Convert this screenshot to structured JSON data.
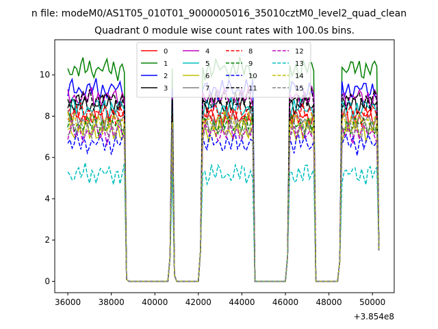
{
  "chart_data": {
    "type": "line",
    "suptitle": "n file: modeM0/AS1T05_010T01_9000005016_35010cztM0_level2_quad_clean",
    "title": "Quadrant 0 module wise count rates with 100.0s bins.",
    "xlabel": "",
    "ylabel": "",
    "x_offset_label": "+3.854e8",
    "xlim": [
      35400,
      51000
    ],
    "ylim": [
      -0.55,
      11.7
    ],
    "xticks": [
      36000,
      38000,
      40000,
      42000,
      44000,
      46000,
      48000,
      50000
    ],
    "xtick_labels": [
      "36000",
      "38000",
      "40000",
      "42000",
      "44000",
      "46000",
      "48000",
      "50000"
    ],
    "yticks": [
      0,
      2,
      4,
      6,
      8,
      10
    ],
    "ytick_labels": [
      "0",
      "2",
      "4",
      "6",
      "8",
      "10"
    ],
    "grid": false,
    "legend": {
      "location": "top-center",
      "columns": 4
    },
    "segments": [
      {
        "start": 36000,
        "end": 38600,
        "kind": "on"
      },
      {
        "start": 38700,
        "end": 38700,
        "kind": "drop",
        "value": 0.1
      },
      {
        "start": 38800,
        "end": 40600,
        "kind": "zero"
      },
      {
        "start": 40700,
        "end": 40700,
        "kind": "rise",
        "value": 1.2
      },
      {
        "start": 40800,
        "end": 40800,
        "kind": "spike",
        "value": 9.0
      },
      {
        "start": 40900,
        "end": 40900,
        "kind": "drop",
        "value": 0.3
      },
      {
        "start": 41000,
        "end": 42000,
        "kind": "zero"
      },
      {
        "start": 42100,
        "end": 42100,
        "kind": "rise",
        "value": 1.5
      },
      {
        "start": 42200,
        "end": 44500,
        "kind": "on"
      },
      {
        "start": 44600,
        "end": 46000,
        "kind": "zero"
      },
      {
        "start": 46100,
        "end": 46100,
        "kind": "rise",
        "value": 1.2
      },
      {
        "start": 46200,
        "end": 47300,
        "kind": "on"
      },
      {
        "start": 47400,
        "end": 48400,
        "kind": "zero"
      },
      {
        "start": 48500,
        "end": 48500,
        "kind": "rise",
        "value": 1.0
      },
      {
        "start": 48600,
        "end": 50200,
        "kind": "on"
      },
      {
        "start": 50300,
        "end": 50300,
        "kind": "end",
        "value": 1.5
      }
    ],
    "series": [
      {
        "name": "0",
        "color": "#ff0000",
        "dash": "solid",
        "mean": 8.0,
        "amp": 0.35
      },
      {
        "name": "1",
        "color": "#008000",
        "dash": "solid",
        "mean": 10.3,
        "amp": 0.35
      },
      {
        "name": "2",
        "color": "#0000ff",
        "dash": "solid",
        "mean": 9.3,
        "amp": 0.35
      },
      {
        "name": "3",
        "color": "#000000",
        "dash": "solid",
        "mean": 8.6,
        "amp": 0.35
      },
      {
        "name": "4",
        "color": "#bf00bf",
        "dash": "solid",
        "mean": 8.9,
        "amp": 0.35
      },
      {
        "name": "5",
        "color": "#00bfbf",
        "dash": "solid",
        "mean": 8.4,
        "amp": 0.35
      },
      {
        "name": "6",
        "color": "#bfbf00",
        "dash": "solid",
        "mean": 7.3,
        "amp": 0.35
      },
      {
        "name": "7",
        "color": "#808080",
        "dash": "solid",
        "mean": 7.8,
        "amp": 0.35
      },
      {
        "name": "8",
        "color": "#ff0000",
        "dash": "dashed",
        "mean": 8.1,
        "amp": 0.35
      },
      {
        "name": "9",
        "color": "#008000",
        "dash": "dashed",
        "mean": 7.6,
        "amp": 0.35
      },
      {
        "name": "10",
        "color": "#0000ff",
        "dash": "dashed",
        "mean": 6.7,
        "amp": 0.35
      },
      {
        "name": "11",
        "color": "#000000",
        "dash": "dashed",
        "mean": 8.8,
        "amp": 0.35
      },
      {
        "name": "12",
        "color": "#bf00bf",
        "dash": "dashed",
        "mean": 7.2,
        "amp": 0.35
      },
      {
        "name": "13",
        "color": "#00bfbf",
        "dash": "dashed",
        "mean": 5.2,
        "amp": 0.35
      },
      {
        "name": "14",
        "color": "#bfbf00",
        "dash": "dashed",
        "mean": 7.7,
        "amp": 0.35
      },
      {
        "name": "15",
        "color": "#808080",
        "dash": "dashed",
        "mean": 7.4,
        "amp": 0.35
      }
    ]
  }
}
